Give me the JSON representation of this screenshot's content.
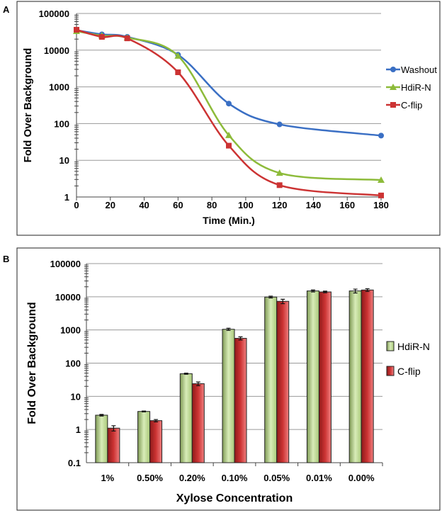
{
  "chart_data": [
    {
      "panel": "A",
      "type": "line",
      "title": "",
      "xlabel": "Time (Min.)",
      "ylabel": "Fold Over Background",
      "yscale": "log",
      "ylim": [
        1,
        100000
      ],
      "xlim": [
        0,
        180
      ],
      "xticks": [
        "0",
        "20",
        "40",
        "60",
        "80",
        "100",
        "120",
        "140",
        "160",
        "180"
      ],
      "yticks": [
        "1",
        "10",
        "100",
        "1000",
        "10000",
        "100000"
      ],
      "x": [
        0,
        15,
        30,
        60,
        90,
        120,
        180
      ],
      "series": [
        {
          "name": "Washout",
          "color": "#3a6fc4",
          "marker": "circle",
          "values": [
            35000,
            27000,
            23000,
            7500,
            350,
            95,
            47
          ]
        },
        {
          "name": "HdiR-N",
          "color": "#8dbb3a",
          "marker": "triangle",
          "values": [
            33000,
            25000,
            22000,
            7000,
            48,
            4.5,
            2.9
          ]
        },
        {
          "name": "C-flip",
          "color": "#cc3333",
          "marker": "square",
          "values": [
            36000,
            23000,
            21000,
            2500,
            25,
            2.1,
            1.1
          ]
        }
      ],
      "legend": "right",
      "grid": true
    },
    {
      "panel": "B",
      "type": "bar",
      "title": "",
      "xlabel": "Xylose Concentration",
      "ylabel": "Fold Over Background",
      "yscale": "log",
      "ylim": [
        0.1,
        100000
      ],
      "yticks": [
        "0.1",
        "1",
        "10",
        "100",
        "1000",
        "10000",
        "100000"
      ],
      "categories": [
        "1%",
        "0.50%",
        "0.20%",
        "0.10%",
        "0.05%",
        "0.01%",
        "0.00%"
      ],
      "series": [
        {
          "name": "HdiR-N",
          "color": "#a8c878",
          "values": [
            2.7,
            3.5,
            48,
            1050,
            9800,
            15000,
            15000
          ],
          "errors": [
            0.15,
            0.1,
            2,
            80,
            600,
            1000,
            2000
          ]
        },
        {
          "name": "C-flip",
          "color": "#cc3333",
          "values": [
            1.1,
            1.85,
            24,
            560,
            7300,
            14000,
            16000
          ],
          "errors": [
            0.2,
            0.15,
            3,
            60,
            1100,
            800,
            1500
          ]
        }
      ],
      "legend": "right",
      "grid": true
    }
  ]
}
